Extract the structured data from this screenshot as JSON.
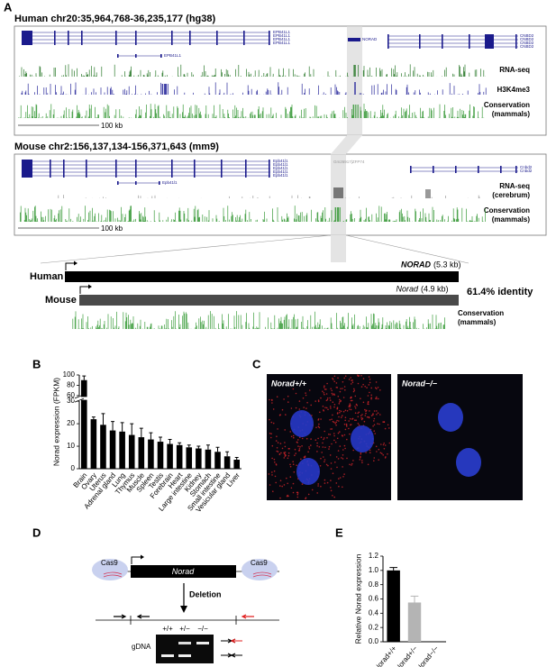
{
  "panel_a": {
    "label": "A",
    "human_title": "Human chr20:35,964,768-36,235,177 (hg38)",
    "human_genes": [
      "EPB41L1",
      "EPB41L1",
      "EPB41L1",
      "EPB41L1",
      "EPB41L1",
      "NORAD",
      "CNBD2",
      "CNBD2",
      "CNBD2",
      "CNBD2"
    ],
    "human_tracks": [
      "RNA-seq",
      "H3K4me3"
    ],
    "human_conservation": [
      "Conservation",
      "(mammals)"
    ],
    "scale": "100 kb",
    "mouse_title": "Mouse chr2:156,137,134-156,371,643 (mm9)",
    "mouse_genes": [
      "Epb41l1",
      "Epb41l1",
      "Epb41l1",
      "Epb41l1",
      "Epb41l1",
      "Epb41l1",
      "Gm26917|ZFP74",
      "Cnbd2",
      "Cnbd2"
    ],
    "mouse_rnaseq": [
      "RNA-seq",
      "(cerebrum)"
    ],
    "mouse_conservation": [
      "Conservation",
      "(mammals)"
    ],
    "mouse_scale": "100 kb",
    "zoom_human": "Human",
    "zoom_human_gene": "NORAD",
    "zoom_human_size": "(5.3 kb)",
    "zoom_mouse": "Mouse",
    "zoom_mouse_gene": "Norad",
    "zoom_mouse_size": "(4.9 kb)",
    "identity": "61.4% identity",
    "zoom_conservation": [
      "Conservation",
      "(mammals)"
    ]
  },
  "panel_b": {
    "label": "B"
  },
  "panel_c": {
    "label": "C",
    "images": [
      "Norad+/+",
      "Norad−/−"
    ]
  },
  "panel_d": {
    "label": "D",
    "cas9": [
      "Cas9",
      "Cas9"
    ],
    "gene": "Norad",
    "deletion": "Deletion",
    "gel_label": "gDNA",
    "lanes": [
      "+/+",
      "+/−",
      "−/−"
    ]
  },
  "panel_e": {
    "label": "E"
  },
  "chart_data": [
    {
      "type": "bar",
      "ylabel": "Norad expression (FPKM)",
      "categories": [
        "Brain",
        "Ovary",
        "Uterus",
        "Adrenal gland",
        "Lung",
        "Thymus",
        "Muscle",
        "Spleen",
        "Testis",
        "Forebrain",
        "Heart",
        "Large intestine",
        "Kidney",
        "Stomach",
        "Small intestine",
        "Vesicular gland",
        "Liver"
      ],
      "values": [
        90,
        22,
        19.5,
        17,
        16.5,
        15,
        14,
        13,
        12,
        11,
        10.5,
        9.5,
        9,
        8.5,
        7.5,
        5.5,
        4
      ],
      "errors": [
        8,
        1,
        5,
        4,
        4,
        5,
        4,
        3,
        2,
        2,
        1,
        1,
        1,
        2,
        2,
        2,
        1
      ],
      "color": "#000000",
      "ylim": [
        0,
        100
      ],
      "axis_break": [
        30,
        60
      ],
      "yticks": [
        0,
        10,
        20,
        30,
        60,
        80,
        100
      ]
    },
    {
      "type": "bar",
      "ylabel": "Relative Norad expression",
      "categories": [
        "Norad+/+",
        "Norad+/−",
        "Norad−/−"
      ],
      "values": [
        1.0,
        0.55,
        0
      ],
      "errors": [
        0.04,
        0.09,
        0
      ],
      "colors": [
        "#000000",
        "#b4b4b4",
        "#b4b4b4"
      ],
      "ylim": [
        0,
        1.2
      ],
      "yticks": [
        {
          "value": 0,
          "label": "0.0"
        },
        0.2,
        0.4,
        0.6,
        0.8,
        {
          "value": 1,
          "label": "1.0"
        },
        1.2
      ]
    }
  ]
}
